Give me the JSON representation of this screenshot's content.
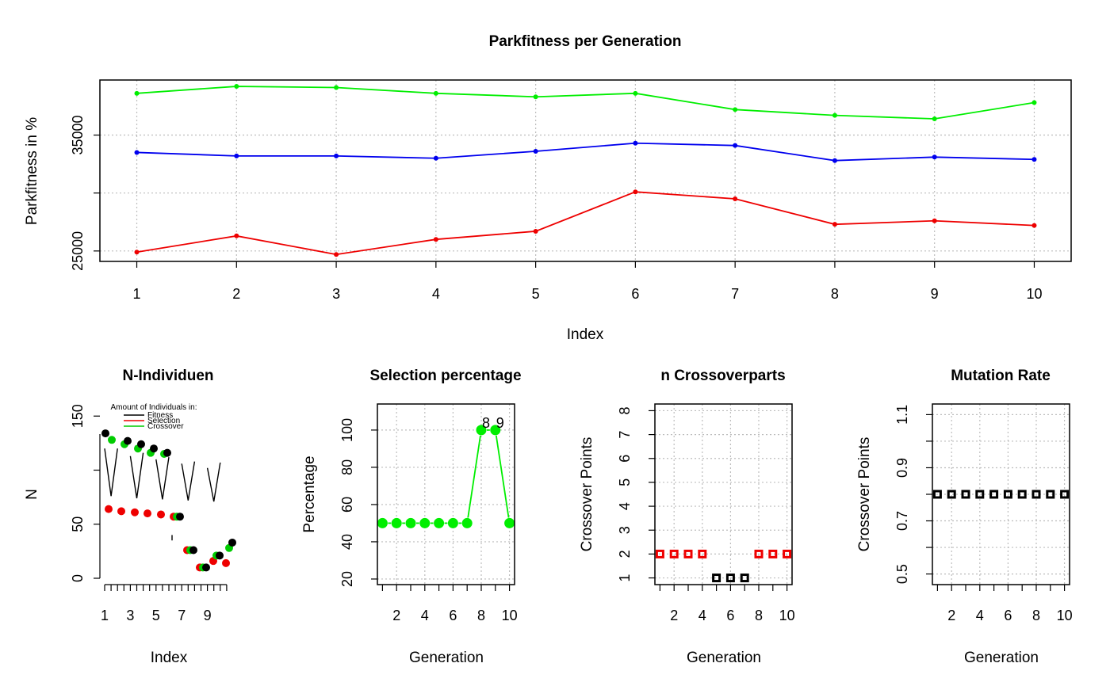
{
  "chart_data": [
    {
      "id": "parkfitness",
      "type": "line",
      "title": "Parkfitness per Generation",
      "xlabel": "Index",
      "ylabel": "Parkfitness in %",
      "x": [
        1,
        2,
        3,
        4,
        5,
        6,
        7,
        8,
        9,
        10
      ],
      "xticks": [
        "1",
        "2",
        "3",
        "4",
        "5",
        "6",
        "7",
        "8",
        "9",
        "10"
      ],
      "yticks": [
        "25000",
        "35000"
      ],
      "xlim": [
        0.63,
        10.37
      ],
      "ylim": [
        24100,
        39750
      ],
      "grid": true,
      "series": [
        {
          "color": "#00ee00",
          "values": [
            38600,
            39200,
            39100,
            38600,
            38300,
            38600,
            37200,
            36700,
            36400,
            37800
          ]
        },
        {
          "color": "#0000ee",
          "values": [
            33500,
            33200,
            33200,
            33000,
            33600,
            34300,
            34100,
            32800,
            33100,
            32900
          ]
        },
        {
          "color": "#ee0000",
          "values": [
            24900,
            26300,
            24700,
            26000,
            26700,
            30100,
            29500,
            27300,
            27600,
            27200
          ]
        }
      ]
    },
    {
      "id": "n-individuen",
      "type": "scatter",
      "title": "N-Individuen",
      "xlabel": "Index",
      "ylabel": "N",
      "xticks": [
        "1",
        "3",
        "5",
        "7",
        "9"
      ],
      "yticks": [
        "0",
        "50",
        "150"
      ],
      "legend": {
        "title": "Amount of Individuals in:",
        "placement": "top",
        "entries": [
          {
            "label": "Fitness",
            "color": "#000000"
          },
          {
            "label": "Selection",
            "color": "#ee0000"
          },
          {
            "label": "Crossover",
            "color": "#00cc00"
          }
        ]
      },
      "categories": [
        1,
        2,
        3,
        4,
        5,
        6,
        7,
        8,
        9,
        10
      ],
      "series": [
        {
          "color": "#000000",
          "values": [
            134,
            127,
            124,
            120,
            116,
            57,
            26,
            10,
            21,
            33
          ]
        },
        {
          "color": "#ee0000",
          "values": [
            64,
            62,
            61,
            60,
            59,
            57,
            26,
            10,
            16,
            14
          ]
        },
        {
          "color": "#00cc00",
          "values": [
            128,
            124,
            120,
            116,
            115,
            57,
            26,
            10,
            21,
            28
          ]
        }
      ]
    },
    {
      "id": "selection-percentage",
      "type": "line",
      "title": "Selection percentage",
      "xlabel": "Generation",
      "ylabel": "Percentage",
      "x": [
        1,
        2,
        3,
        4,
        5,
        6,
        7,
        8,
        9,
        10
      ],
      "xticks": [
        "2",
        "4",
        "6",
        "8",
        "10"
      ],
      "yticks": [
        "20",
        "40",
        "60",
        "80",
        "100"
      ],
      "xlim": [
        0.64,
        10.36
      ],
      "ylim": [
        17,
        114
      ],
      "grid": true,
      "values": [
        50,
        50,
        50,
        50,
        50,
        50,
        50,
        100,
        100,
        50
      ],
      "point_labels": [
        {
          "x": 8,
          "text": "8"
        },
        {
          "x": 9,
          "text": "9"
        }
      ],
      "color": "#00ee00"
    },
    {
      "id": "crossoverparts",
      "type": "scatter",
      "title": "n Crossoverparts",
      "xlabel": "Generation",
      "ylabel": "Crossover Points",
      "x": [
        1,
        2,
        3,
        4,
        5,
        6,
        7,
        8,
        9,
        10
      ],
      "xticks": [
        "2",
        "4",
        "6",
        "8",
        "10"
      ],
      "yticks": [
        "1",
        "2",
        "3",
        "4",
        "5",
        "6",
        "7",
        "8"
      ],
      "xlim": [
        0.64,
        10.36
      ],
      "ylim": [
        0.72,
        8.28
      ],
      "grid": true,
      "values": [
        2,
        2,
        2,
        2,
        1,
        1,
        1,
        2,
        2,
        2
      ],
      "colors": [
        "#ee0000",
        "#ee0000",
        "#ee0000",
        "#ee0000",
        "#000000",
        "#000000",
        "#000000",
        "#ee0000",
        "#ee0000",
        "#ee0000"
      ]
    },
    {
      "id": "mutation-rate",
      "type": "scatter",
      "title": "Mutation Rate",
      "xlabel": "Generation",
      "ylabel": "Crossover Points",
      "x": [
        1,
        2,
        3,
        4,
        5,
        6,
        7,
        8,
        9,
        10
      ],
      "xticks": [
        "2",
        "4",
        "6",
        "8",
        "10"
      ],
      "yticks": [
        "0.5",
        "0.7",
        "0.9",
        "1.1"
      ],
      "xlim": [
        0.64,
        10.36
      ],
      "ylim": [
        0.46,
        1.14
      ],
      "grid": true,
      "values": [
        0.8,
        0.8,
        0.8,
        0.8,
        0.8,
        0.8,
        0.8,
        0.8,
        0.8,
        0.8
      ],
      "color": "#000000"
    }
  ]
}
